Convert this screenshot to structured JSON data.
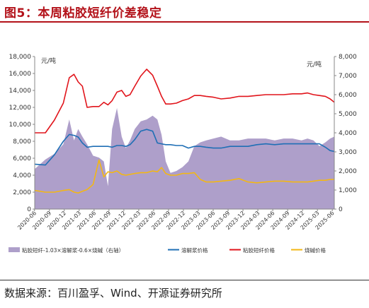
{
  "page": {
    "title": "图5：本周粘胶短纤价差稳定",
    "source": "数据来源：百川盈孚、Wind、开源证券研究所"
  },
  "chart_data": {
    "type": "area+line",
    "unit_left": "元/吨",
    "unit_right": "元/吨",
    "ylim_left": [
      0,
      18000
    ],
    "yticks_left": [
      "0",
      "2,000",
      "4,000",
      "6,000",
      "8,000",
      "10,000",
      "12,000",
      "14,000",
      "16,000",
      "18,000"
    ],
    "ylim_right": [
      0,
      8000
    ],
    "yticks_right": [
      "0",
      "1,000",
      "2,000",
      "3,000",
      "4,000",
      "5,000",
      "6,000",
      "7,000",
      "8,000"
    ],
    "grid": false,
    "legend_position": "bottom",
    "x_labels": [
      "2020-06",
      "2020-09",
      "2020-12",
      "2021-03",
      "2021-06",
      "2021-09",
      "2021-12",
      "2022-03",
      "2022-06",
      "2022-09",
      "2022-12",
      "2023-03",
      "2023-06",
      "2023-09",
      "2023-12",
      "2024-03",
      "2024-06",
      "2024-09",
      "2024-12",
      "2025-03",
      "2025-06"
    ],
    "x": [
      2020.42,
      2020.6,
      2020.75,
      2020.9,
      2021.0,
      2021.08,
      2021.15,
      2021.22,
      2021.3,
      2021.4,
      2021.5,
      2021.58,
      2021.65,
      2021.72,
      2021.8,
      2021.88,
      2021.95,
      2022.02,
      2022.1,
      2022.2,
      2022.3,
      2022.4,
      2022.48,
      2022.55,
      2022.62,
      2022.7,
      2022.8,
      2022.9,
      2023.0,
      2023.1,
      2023.2,
      2023.3,
      2023.42,
      2023.55,
      2023.7,
      2023.85,
      2024.0,
      2024.15,
      2024.3,
      2024.45,
      2024.6,
      2024.75,
      2024.9,
      2025.0,
      2025.1,
      2025.2,
      2025.3,
      2025.38,
      2025.45
    ],
    "series": [
      {
        "name": "粘胶短纤-1.03×溶解浆-0.6×烧碱（右轴）",
        "axis": "right",
        "kind": "area",
        "color": "#ae9fca",
        "values": [
          2100,
          2600,
          2900,
          3400,
          4700,
          3600,
          4200,
          3800,
          3400,
          2800,
          2700,
          2500,
          1200,
          4200,
          5300,
          3800,
          3200,
          3600,
          4200,
          4600,
          4700,
          4900,
          4700,
          3900,
          2500,
          1900,
          2000,
          2200,
          2500,
          3300,
          3500,
          3600,
          3700,
          3800,
          3600,
          3600,
          3700,
          3700,
          3700,
          3600,
          3700,
          3700,
          3600,
          3700,
          3600,
          3300,
          3500,
          3700,
          3800
        ]
      },
      {
        "name": "溶解浆价格",
        "axis": "left",
        "kind": "line",
        "color": "#1f6fb5",
        "values": [
          5300,
          5200,
          6400,
          8000,
          8800,
          8700,
          8500,
          7800,
          7300,
          7400,
          7400,
          7400,
          7400,
          7300,
          7500,
          7500,
          7400,
          7600,
          8200,
          9200,
          9400,
          9200,
          7800,
          7700,
          7600,
          7600,
          7500,
          7500,
          7200,
          7400,
          7400,
          7300,
          7200,
          7200,
          7400,
          7400,
          7400,
          7600,
          7700,
          7600,
          7700,
          7700,
          7700,
          7700,
          7700,
          7700,
          7300,
          6900,
          6800
        ]
      },
      {
        "name": "粘胶短纤价格",
        "axis": "left",
        "kind": "line",
        "color": "#e1141b",
        "values": [
          9000,
          9000,
          10500,
          12500,
          15500,
          15900,
          15000,
          14500,
          12000,
          12100,
          12100,
          12600,
          12300,
          12800,
          13800,
          14000,
          13300,
          13500,
          14500,
          15700,
          16500,
          15800,
          14500,
          13300,
          12400,
          12400,
          12500,
          12800,
          13000,
          13400,
          13400,
          13300,
          13200,
          13000,
          13100,
          13300,
          13300,
          13400,
          13500,
          13500,
          13500,
          13600,
          13600,
          13700,
          13500,
          13400,
          13300,
          13000,
          12600
        ]
      },
      {
        "name": "烧碱价格",
        "axis": "left",
        "kind": "line",
        "color": "#f3b714",
        "values": [
          2200,
          2000,
          2000,
          2200,
          2300,
          2000,
          1900,
          2100,
          2300,
          2900,
          5800,
          3800,
          4400,
          4300,
          4500,
          4100,
          4000,
          4100,
          4200,
          4300,
          4300,
          4500,
          4400,
          4900,
          4200,
          4000,
          4000,
          4200,
          4200,
          4300,
          3500,
          3200,
          3200,
          3300,
          3400,
          3600,
          3200,
          3100,
          3200,
          3300,
          3300,
          3200,
          3200,
          3200,
          3300,
          3400,
          3400,
          3500,
          3500
        ]
      }
    ]
  }
}
